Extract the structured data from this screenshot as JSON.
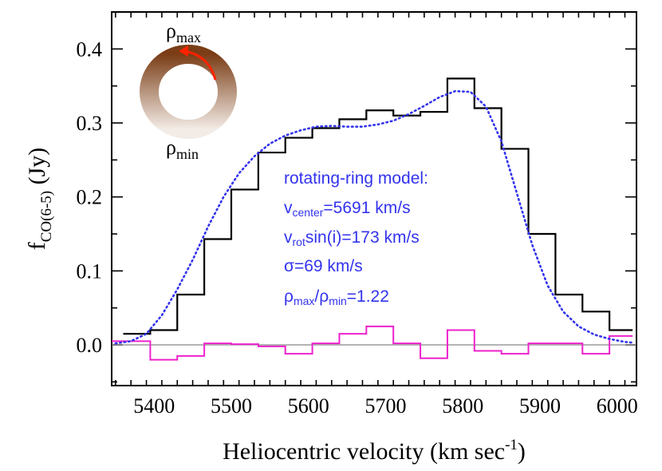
{
  "chart_data": {
    "type": "line",
    "xlabel": "Heliocentric velocity (km sec",
    "xlabel_sup": "-1",
    "xlabel_end": ")",
    "ylabel_main": "f",
    "ylabel_sub": "CO(6-5)",
    "ylabel_unit": " (Jy)",
    "xlim": [
      5345,
      6025
    ],
    "ylim": [
      -0.055,
      0.45
    ],
    "xticks": [
      5400,
      5500,
      5600,
      5700,
      5800,
      5900,
      6000
    ],
    "yticks": [
      0.0,
      0.1,
      0.2,
      0.3,
      0.4
    ],
    "ytick_labels": [
      "0.0",
      "0.1",
      "0.2",
      "0.3",
      "0.4"
    ],
    "grid": false,
    "zero_line": true,
    "series": [
      {
        "kind": "step",
        "color": "#000000",
        "bin_edges": [
          5360,
          5395,
          5430,
          5465,
          5500,
          5535,
          5570,
          5605,
          5640,
          5675,
          5710,
          5745,
          5780,
          5815,
          5850,
          5885,
          5920,
          5955,
          5990,
          6020
        ],
        "values": [
          0.015,
          0.02,
          0.068,
          0.143,
          0.21,
          0.26,
          0.28,
          0.293,
          0.305,
          0.317,
          0.31,
          0.315,
          0.36,
          0.32,
          0.265,
          0.15,
          0.068,
          0.045,
          0.02
        ]
      },
      {
        "kind": "dotted-line",
        "color": "#3333ee",
        "x": [
          5350,
          5370,
          5390,
          5410,
          5430,
          5450,
          5470,
          5490,
          5510,
          5530,
          5550,
          5570,
          5590,
          5610,
          5630,
          5650,
          5670,
          5690,
          5710,
          5730,
          5750,
          5770,
          5790,
          5810,
          5830,
          5850,
          5870,
          5890,
          5910,
          5930,
          5950,
          5970,
          5990,
          6010,
          6020
        ],
        "y": [
          0.002,
          0.005,
          0.015,
          0.04,
          0.075,
          0.115,
          0.16,
          0.2,
          0.232,
          0.255,
          0.272,
          0.283,
          0.29,
          0.295,
          0.296,
          0.295,
          0.295,
          0.298,
          0.303,
          0.312,
          0.323,
          0.335,
          0.343,
          0.342,
          0.322,
          0.275,
          0.205,
          0.135,
          0.08,
          0.045,
          0.025,
          0.014,
          0.008,
          0.004,
          0.003
        ]
      },
      {
        "kind": "step",
        "color": "#ee22cc",
        "bin_edges": [
          5345,
          5395,
          5430,
          5465,
          5500,
          5535,
          5570,
          5605,
          5640,
          5675,
          5710,
          5745,
          5780,
          5815,
          5850,
          5885,
          5920,
          5955,
          5990,
          6020
        ],
        "values": [
          0.005,
          -0.02,
          -0.015,
          0.002,
          0.001,
          -0.002,
          -0.012,
          0.002,
          0.015,
          0.025,
          0.002,
          -0.018,
          0.02,
          -0.008,
          -0.012,
          0.002,
          0.002,
          -0.012,
          0.012
        ]
      }
    ],
    "annotations": {
      "line1": "rotating-ring model:",
      "line2_a": "v",
      "line2_sub": "center",
      "line2_b": "=5691 km/s",
      "line3_a": "v",
      "line3_sub": "rot",
      "line3_b": "sin(i)=173 km/s",
      "line4": "σ=69 km/s",
      "line5_a": "ρ",
      "line5_sub1": "max",
      "line5_b": "/ρ",
      "line5_sub2": "min",
      "line5_c": "=1.22"
    },
    "ring_inset": {
      "top_label": "ρ",
      "top_sub": "max",
      "bottom_label": "ρ",
      "bottom_sub": "min",
      "ring_top_color": "#7a3d16",
      "ring_bottom_color": "#f3ece6",
      "arrow_color": "#ff2200"
    }
  }
}
